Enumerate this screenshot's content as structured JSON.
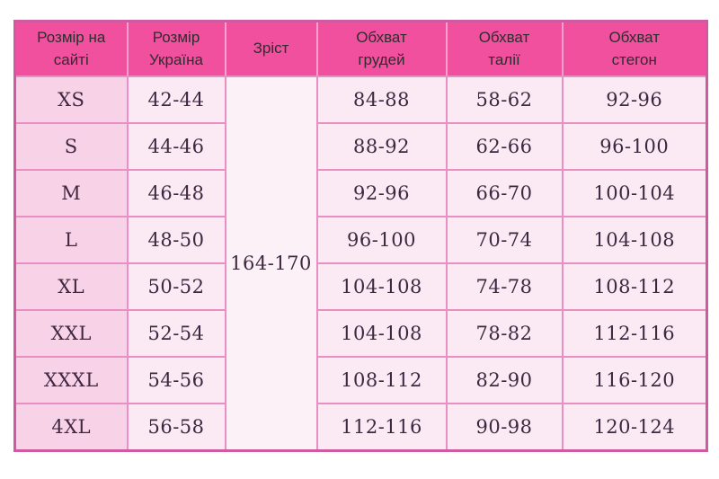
{
  "chart_data": {
    "type": "table",
    "title": "",
    "columns": [
      "Розмір на сайті",
      "Розмір Україна",
      "Зріст",
      "Обхват грудей",
      "Обхват талії",
      "Обхват стегон"
    ],
    "rows": [
      [
        "XS",
        "42-44",
        "164-170",
        "84-88",
        "58-62",
        "92-96"
      ],
      [
        "S",
        "44-46",
        "164-170",
        "88-92",
        "62-66",
        "96-100"
      ],
      [
        "M",
        "46-48",
        "164-170",
        "92-96",
        "66-70",
        "100-104"
      ],
      [
        "L",
        "48-50",
        "164-170",
        "96-100",
        "70-74",
        "104-108"
      ],
      [
        "XL",
        "50-52",
        "164-170",
        "104-108",
        "74-78",
        "108-112"
      ],
      [
        "XXL",
        "52-54",
        "164-170",
        "104-108",
        "78-82",
        "112-116"
      ],
      [
        "XXXL",
        "54-56",
        "164-170",
        "108-112",
        "82-90",
        "116-120"
      ],
      [
        "4XL",
        "56-58",
        "164-170",
        "112-116",
        "90-98",
        "120-124"
      ]
    ],
    "layout": {
      "merged_column": "Зріст",
      "merged_value_shown_once": "164-170",
      "grid": true,
      "header_position": "top"
    }
  },
  "colors": {
    "page_background": "#ffffff",
    "header_background": "#f0509e",
    "header_text": "#2e2e2e",
    "outer_border": "#cf5a9f",
    "grid_line": "#e98fc4",
    "header_separator": "#f5a2d0",
    "first_column_background": "#f8d2e6",
    "body_cell_background": "#fbe9f3",
    "merged_cell_background": "#fdf1f8",
    "body_text": "#3f2742"
  }
}
